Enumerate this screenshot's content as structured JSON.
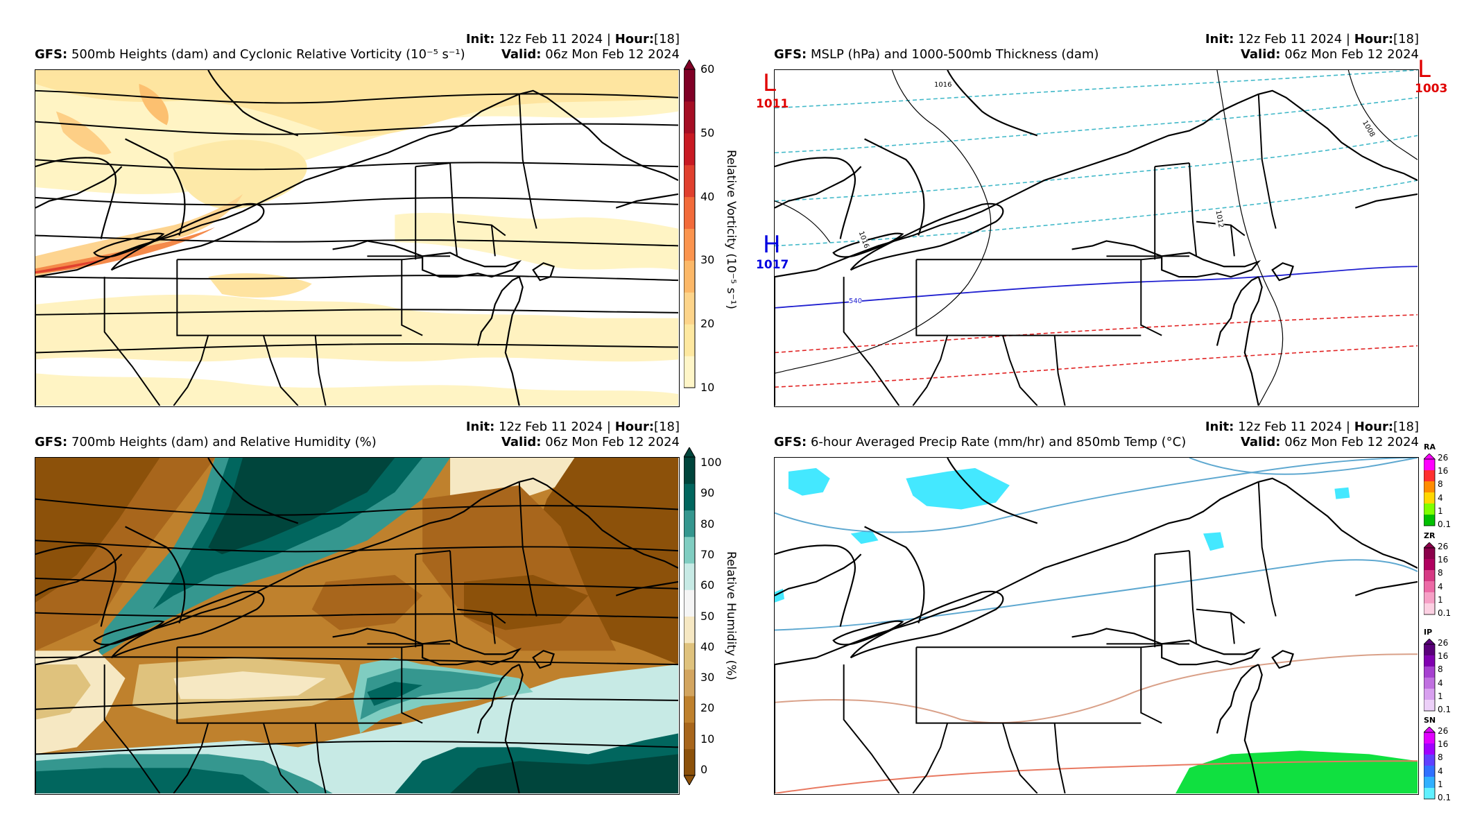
{
  "panels": [
    {
      "model": "GFS",
      "title": "500mb Heights (dam) and Cyclonic Relative Vorticity (10⁻⁵ s⁻¹)",
      "init_label": "Init",
      "init_value": "12z Feb 11 2024",
      "hour_label": "Hour",
      "hour_value": "[18]",
      "valid_label": "Valid",
      "valid_value": "06z Mon Feb 12 2024",
      "colorbar_label": "Relative Vorticity (10⁻⁵ s⁻¹)",
      "colorbar_ticks": [
        "60",
        "50",
        "40",
        "30",
        "20",
        "10"
      ],
      "colorbar_colors": [
        "#fff6c8",
        "#fee8a0",
        "#fdd48a",
        "#fcb868",
        "#fb944e",
        "#f26b3a",
        "#e0402e",
        "#c81a23",
        "#a50e24",
        "#800026"
      ]
    },
    {
      "model": "GFS",
      "title": "MSLP (hPa) and 1000-500mb Thickness (dam)",
      "init_label": "Init",
      "init_value": "12z Feb 11 2024",
      "hour_label": "Hour",
      "hour_value": "[18]",
      "valid_label": "Valid",
      "valid_value": "06z Mon Feb 12 2024",
      "pressure_centers": [
        {
          "symbol": "L",
          "value": "1011",
          "color": "#e00000"
        },
        {
          "symbol": "L",
          "value": "1003",
          "color": "#e00000"
        },
        {
          "symbol": "H",
          "value": "1017",
          "color": "#0000e0"
        }
      ],
      "contour_labels": [
        "1016",
        "1012",
        "1008",
        "1016",
        "1012",
        "540"
      ]
    },
    {
      "model": "GFS",
      "title": "700mb Heights (dam) and Relative Humidity (%)",
      "init_label": "Init",
      "init_value": "12z Feb 11 2024",
      "hour_label": "Hour",
      "hour_value": "[18]",
      "valid_label": "Valid",
      "valid_value": "06z Mon Feb 12 2024",
      "colorbar_label": "Relative Humidity (%)",
      "colorbar_ticks": [
        "100",
        "90",
        "80",
        "70",
        "60",
        "50",
        "40",
        "30",
        "20",
        "10",
        "0"
      ],
      "colorbar_colors": [
        "#8c510a",
        "#a8661c",
        "#bf812d",
        "#d3a55f",
        "#dfc27d",
        "#f6e8c3",
        "#f5f5f5",
        "#c7eae5",
        "#80cdc1",
        "#35978f",
        "#01665e",
        "#00453c"
      ]
    },
    {
      "model": "GFS",
      "title": "6-hour Averaged Precip Rate (mm/hr) and 850mb Temp (°C)",
      "init_label": "Init",
      "init_value": "12z Feb 11 2024",
      "hour_label": "Hour",
      "hour_value": "[18]",
      "valid_label": "Valid",
      "valid_value": "06z Mon Feb 12 2024",
      "precip_types": [
        {
          "label": "RA",
          "ticks": [
            "26",
            "16",
            "8",
            "4",
            "1",
            "0.1"
          ],
          "colors": [
            "#ff00ff",
            "#ff3030",
            "#ff8c00",
            "#ffd700",
            "#7fff00",
            "#00c000"
          ]
        },
        {
          "label": "ZR",
          "ticks": [
            "26",
            "16",
            "8",
            "4",
            "1",
            "0.1"
          ],
          "colors": [
            "#8b004b",
            "#b0005f",
            "#d63a84",
            "#ec6aa6",
            "#f6a0c6",
            "#fcd0e2"
          ]
        },
        {
          "label": "IP",
          "ticks": [
            "26",
            "16",
            "8",
            "4",
            "1",
            "0.1"
          ],
          "colors": [
            "#5a007a",
            "#8000b0",
            "#a640d0",
            "#c070e0",
            "#d8a0ef",
            "#ecd0f8"
          ]
        },
        {
          "label": "SN",
          "ticks": [
            "26",
            "16",
            "8",
            "4",
            "1",
            "0.1"
          ],
          "colors": [
            "#e000ff",
            "#a000ff",
            "#6040ff",
            "#3070ff",
            "#30b0ff",
            "#60f0ff"
          ]
        }
      ]
    }
  ]
}
